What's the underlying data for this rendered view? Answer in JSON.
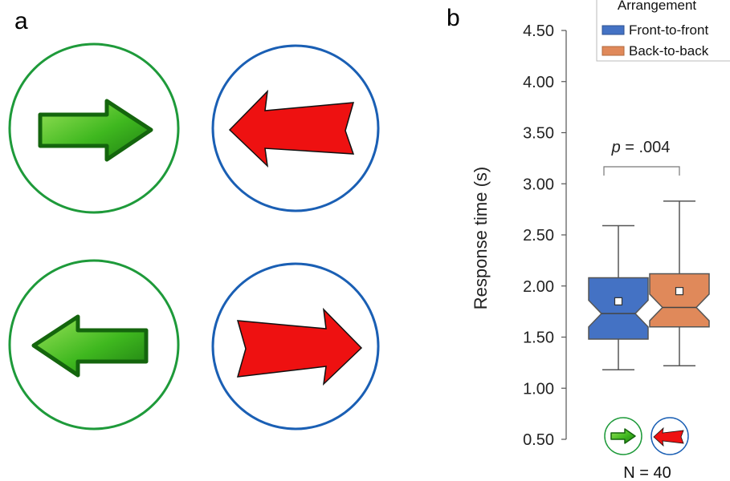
{
  "panel_a": {
    "letter": "a",
    "stimuli": [
      {
        "name": "front-to-front-right",
        "arrow_color": "#2a9d1a",
        "ring_color": "#1e9a3a",
        "direction": "right"
      },
      {
        "name": "back-to-back-left",
        "arrow_color": "#ee1111",
        "ring_color": "#1a5fb4",
        "direction": "left"
      },
      {
        "name": "front-to-front-left",
        "arrow_color": "#2a9d1a",
        "ring_color": "#1e9a3a",
        "direction": "left"
      },
      {
        "name": "back-to-back-right",
        "arrow_color": "#ee1111",
        "ring_color": "#1a5fb4",
        "direction": "right"
      }
    ]
  },
  "panel_b": {
    "letter": "b",
    "p_value_prefix": "p",
    "p_value_text": " = .004",
    "n_label": "N = 40"
  },
  "chart_data": {
    "type": "boxplot",
    "ylabel": "Response time (s)",
    "ylim": [
      0.5,
      4.5
    ],
    "yticks": [
      "0.50",
      "1.00",
      "1.50",
      "2.00",
      "2.50",
      "3.00",
      "3.50",
      "4.00",
      "4.50"
    ],
    "ytick_values": [
      0.5,
      1.0,
      1.5,
      2.0,
      2.5,
      3.0,
      3.5,
      4.0,
      4.5
    ],
    "legend": {
      "title": "Arrangement",
      "position": "top-right"
    },
    "series": [
      {
        "name": "Front-to-front",
        "color": "#4472c4",
        "whisker_low": 1.18,
        "q1": 1.48,
        "median": 1.73,
        "q3": 2.08,
        "whisker_high": 2.59,
        "mean": 1.85,
        "notch_low": 1.6,
        "notch_high": 1.86
      },
      {
        "name": "Back-to-back",
        "color": "#e0895a",
        "whisker_low": 1.22,
        "q1": 1.6,
        "median": 1.79,
        "q3": 2.12,
        "whisker_high": 2.83,
        "mean": 1.95,
        "notch_low": 1.66,
        "notch_high": 1.92
      }
    ]
  }
}
